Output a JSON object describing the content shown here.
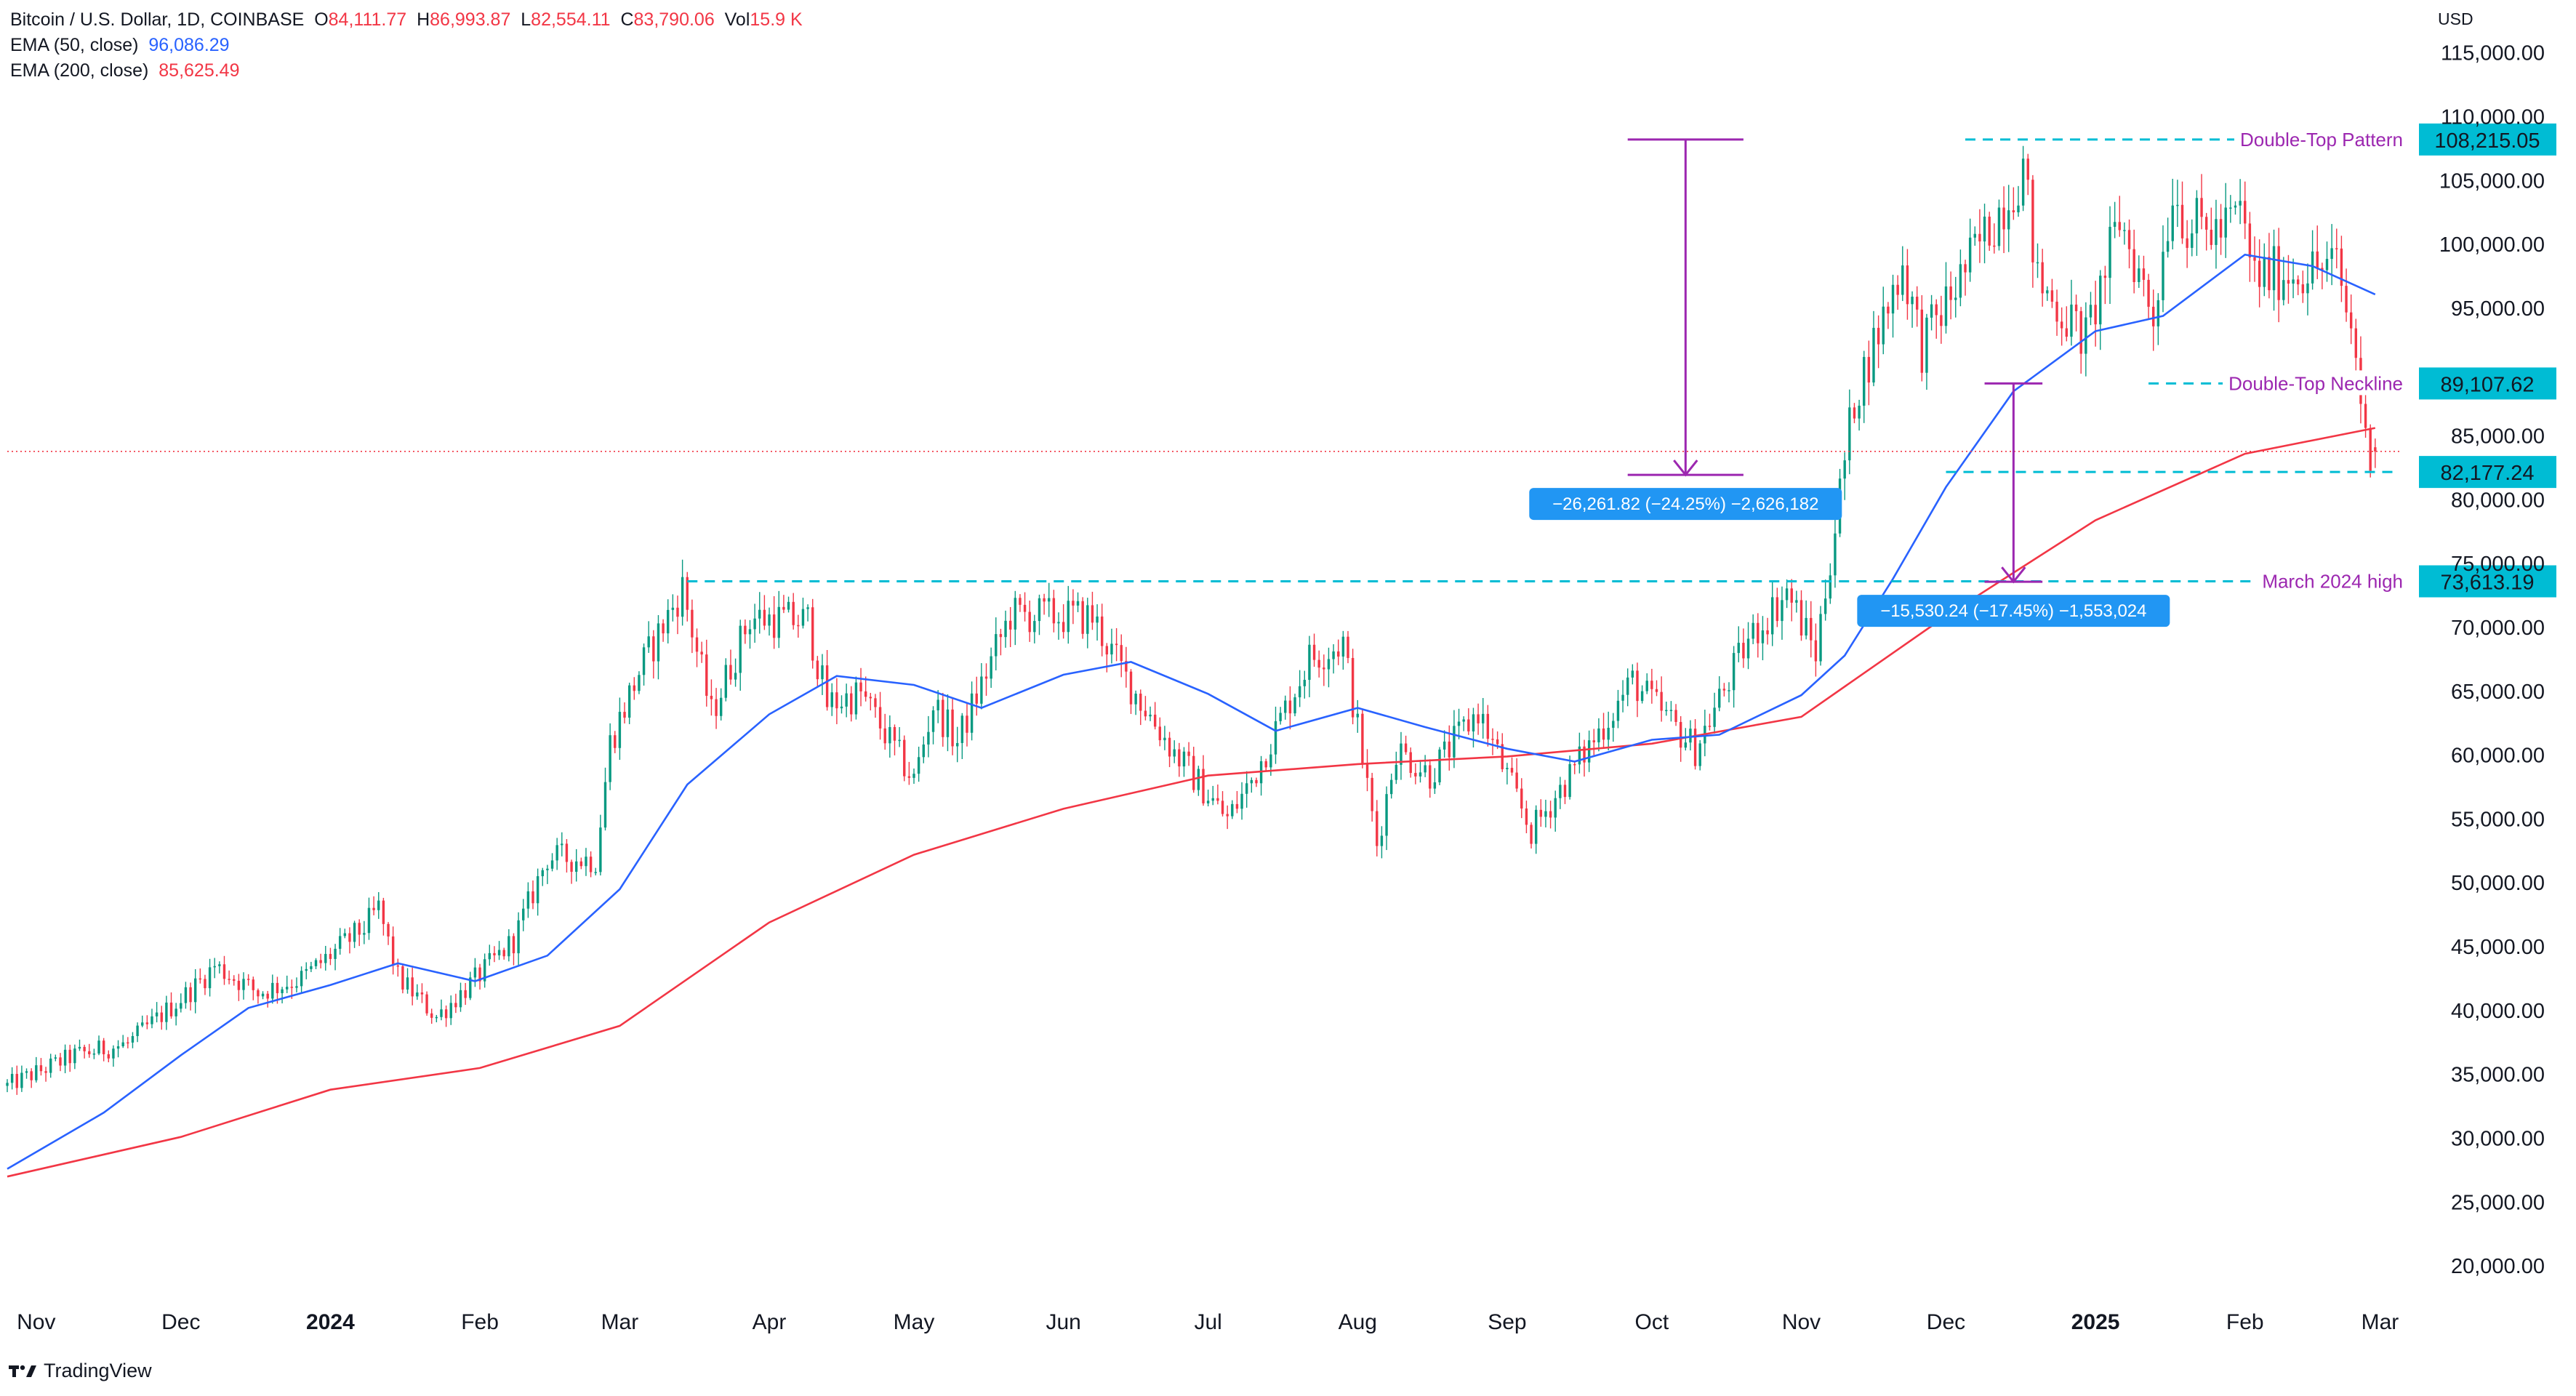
{
  "header": {
    "symbol": "Bitcoin / U.S. Dollar, 1D, COINBASE",
    "open_label": "O",
    "open": "84,111.77",
    "high_label": "H",
    "high": "86,993.87",
    "low_label": "L",
    "low": "82,554.11",
    "close_label": "C",
    "close": "83,790.06",
    "vol_label": "Vol",
    "vol": "15.9 K",
    "ema50_label": "EMA (50, close)",
    "ema50_value": "96,086.29",
    "ema200_label": "EMA (200, close)",
    "ema200_value": "85,625.49"
  },
  "currency": "USD",
  "brand": "TradingView",
  "colors": {
    "up": "#089981",
    "down": "#f23645",
    "ema50": "#2962ff",
    "ema200": "#f23645",
    "dashed": "#00bcd4",
    "measure": "#9c27b0",
    "measure_label_bg": "#2196f3",
    "annotation": "#9c27b0",
    "axis_text": "#131722",
    "last_price": "#f23645"
  },
  "chart_data": {
    "type": "candlestick",
    "y_axis": {
      "min": 17500,
      "max": 118000,
      "side": "right",
      "ticks": [
        20000,
        25000,
        30000,
        35000,
        40000,
        45000,
        50000,
        55000,
        60000,
        65000,
        70000,
        75000,
        80000,
        85000,
        90000,
        95000,
        100000,
        105000,
        110000,
        115000
      ],
      "tick_labels": [
        "20,000.00",
        "25,000.00",
        "30,000.00",
        "35,000.00",
        "40,000.00",
        "45,000.00",
        "50,000.00",
        "55,000.00",
        "60,000.00",
        "65,000.00",
        "70,000.00",
        "75,000.00",
        "80,000.00",
        "85,000.00",
        "90,000.00",
        "95,000.00",
        "100,000.00",
        "105,000.00",
        "110,000.00",
        "115,000.00"
      ]
    },
    "x_axis": {
      "start": "2023-10-26",
      "end": "2025-03-05",
      "ticks": [
        {
          "date": "2023-11-01",
          "label": "Nov",
          "bold": false
        },
        {
          "date": "2023-12-01",
          "label": "Dec",
          "bold": false
        },
        {
          "date": "2024-01-01",
          "label": "2024",
          "bold": true
        },
        {
          "date": "2024-02-01",
          "label": "Feb",
          "bold": false
        },
        {
          "date": "2024-03-01",
          "label": "Mar",
          "bold": false
        },
        {
          "date": "2024-04-01",
          "label": "Apr",
          "bold": false
        },
        {
          "date": "2024-05-01",
          "label": "May",
          "bold": false
        },
        {
          "date": "2024-06-01",
          "label": "Jun",
          "bold": false
        },
        {
          "date": "2024-07-01",
          "label": "Jul",
          "bold": false
        },
        {
          "date": "2024-08-01",
          "label": "Aug",
          "bold": false
        },
        {
          "date": "2024-09-01",
          "label": "Sep",
          "bold": false
        },
        {
          "date": "2024-10-01",
          "label": "Oct",
          "bold": false
        },
        {
          "date": "2024-11-01",
          "label": "Nov",
          "bold": false
        },
        {
          "date": "2024-12-01",
          "label": "Dec",
          "bold": false
        },
        {
          "date": "2025-01-01",
          "label": "2025",
          "bold": true
        },
        {
          "date": "2025-02-01",
          "label": "Feb",
          "bold": false
        },
        {
          "date": "2025-03-01",
          "label": "Mar",
          "bold": false
        }
      ]
    },
    "price_path": [
      [
        "2023-10-26",
        34100
      ],
      [
        "2023-11-09",
        36500
      ],
      [
        "2023-11-20",
        37400
      ],
      [
        "2023-12-04",
        41900
      ],
      [
        "2023-12-08",
        43500
      ],
      [
        "2023-12-17",
        41400
      ],
      [
        "2023-12-26",
        42500
      ],
      [
        "2024-01-08",
        46500
      ],
      [
        "2024-01-11",
        48000
      ],
      [
        "2024-01-15",
        42600
      ],
      [
        "2024-01-23",
        39500
      ],
      [
        "2024-02-01",
        42800
      ],
      [
        "2024-02-08",
        45500
      ],
      [
        "2024-02-15",
        52000
      ],
      [
        "2024-02-25",
        51800
      ],
      [
        "2024-02-28",
        61000
      ],
      [
        "2024-03-05",
        66500
      ],
      [
        "2024-03-14",
        73100
      ],
      [
        "2024-03-20",
        63200
      ],
      [
        "2024-03-28",
        70800
      ],
      [
        "2024-04-09",
        70500
      ],
      [
        "2024-04-13",
        64000
      ],
      [
        "2024-04-20",
        64800
      ],
      [
        "2024-05-01",
        58000
      ],
      [
        "2024-05-05",
        64000
      ],
      [
        "2024-05-10",
        61000
      ],
      [
        "2024-05-21",
        71000
      ],
      [
        "2024-06-07",
        70800
      ],
      [
        "2024-06-14",
        66000
      ],
      [
        "2024-06-24",
        60200
      ],
      [
        "2024-07-05",
        55000
      ],
      [
        "2024-07-10",
        58000
      ],
      [
        "2024-07-22",
        67600
      ],
      [
        "2024-07-29",
        68800
      ],
      [
        "2024-08-05",
        53000
      ],
      [
        "2024-08-09",
        60500
      ],
      [
        "2024-08-16",
        58500
      ],
      [
        "2024-08-26",
        63500
      ],
      [
        "2024-09-06",
        54000
      ],
      [
        "2024-09-15",
        59000
      ],
      [
        "2024-09-27",
        65800
      ],
      [
        "2024-10-10",
        60500
      ],
      [
        "2024-10-21",
        69000
      ],
      [
        "2024-10-29",
        72800
      ],
      [
        "2024-11-04",
        68000
      ],
      [
        "2024-11-12",
        88000
      ],
      [
        "2024-11-22",
        98500
      ],
      [
        "2024-11-26",
        92000
      ],
      [
        "2024-12-05",
        98000
      ],
      [
        "2024-12-17",
        106000
      ],
      [
        "2024-12-20",
        97000
      ],
      [
        "2024-12-30",
        92500
      ],
      [
        "2025-01-06",
        102000
      ],
      [
        "2025-01-13",
        94500
      ],
      [
        "2025-01-17",
        104500
      ],
      [
        "2025-01-20",
        101500
      ],
      [
        "2025-01-27",
        101000
      ],
      [
        "2025-01-31",
        102500
      ],
      [
        "2025-02-03",
        97500
      ],
      [
        "2025-02-20",
        98300
      ],
      [
        "2025-02-24",
        91500
      ],
      [
        "2025-02-26",
        84500
      ],
      [
        "2025-02-28",
        83790
      ]
    ],
    "ema50_path": [
      [
        "2023-10-26",
        27600
      ],
      [
        "2023-11-15",
        32000
      ],
      [
        "2023-12-01",
        36500
      ],
      [
        "2023-12-15",
        40200
      ],
      [
        "2024-01-01",
        42000
      ],
      [
        "2024-01-15",
        43700
      ],
      [
        "2024-01-31",
        42300
      ],
      [
        "2024-02-15",
        44300
      ],
      [
        "2024-03-01",
        49500
      ],
      [
        "2024-03-15",
        57700
      ],
      [
        "2024-04-01",
        63200
      ],
      [
        "2024-04-15",
        66200
      ],
      [
        "2024-05-01",
        65500
      ],
      [
        "2024-05-15",
        63700
      ],
      [
        "2024-06-01",
        66300
      ],
      [
        "2024-06-15",
        67300
      ],
      [
        "2024-07-01",
        64800
      ],
      [
        "2024-07-15",
        61900
      ],
      [
        "2024-08-01",
        63700
      ],
      [
        "2024-08-15",
        62200
      ],
      [
        "2024-09-01",
        60500
      ],
      [
        "2024-09-15",
        59500
      ],
      [
        "2024-10-01",
        61200
      ],
      [
        "2024-10-15",
        61600
      ],
      [
        "2024-11-01",
        64700
      ],
      [
        "2024-11-10",
        67800
      ],
      [
        "2024-11-20",
        73800
      ],
      [
        "2024-12-01",
        81000
      ],
      [
        "2024-12-15",
        88500
      ],
      [
        "2025-01-01",
        93200
      ],
      [
        "2025-01-15",
        94400
      ],
      [
        "2025-02-01",
        99200
      ],
      [
        "2025-02-15",
        98300
      ],
      [
        "2025-02-28",
        96086
      ]
    ],
    "ema200_path": [
      [
        "2023-10-26",
        27000
      ],
      [
        "2023-12-01",
        30100
      ],
      [
        "2024-01-01",
        33800
      ],
      [
        "2024-02-01",
        35500
      ],
      [
        "2024-03-01",
        38800
      ],
      [
        "2024-04-01",
        46900
      ],
      [
        "2024-05-01",
        52200
      ],
      [
        "2024-06-01",
        55800
      ],
      [
        "2024-07-01",
        58400
      ],
      [
        "2024-08-01",
        59300
      ],
      [
        "2024-09-01",
        59900
      ],
      [
        "2024-10-01",
        60900
      ],
      [
        "2024-11-01",
        63000
      ],
      [
        "2024-12-01",
        70900
      ],
      [
        "2025-01-01",
        78400
      ],
      [
        "2025-02-01",
        83600
      ],
      [
        "2025-02-28",
        85625
      ]
    ],
    "last_price": 83790,
    "horizontal_levels": [
      {
        "start": "2024-03-15",
        "end": "2025-02-28",
        "value": 73613.19,
        "label": "73,613.19",
        "annotation": "March 2024 high"
      },
      {
        "start": "2024-12-05",
        "end": "2025-02-28",
        "value": 108215.05,
        "label": "108,215.05",
        "annotation": "Double-Top Pattern"
      },
      {
        "start": "2025-01-12",
        "end": "2025-02-28",
        "value": 89107.62,
        "label": "89,107.62",
        "annotation": "Double-Top Neckline"
      },
      {
        "start": "2024-12-01",
        "end": "2025-02-28",
        "value": 82177.24,
        "label": "82,177.24",
        "annotation": ""
      }
    ],
    "measurements": [
      {
        "date": "2024-10-08",
        "from": 108215,
        "to": 81953,
        "cap_halfwidth_days": 12,
        "label": "−26,261.82 (−24.25%) −2,626,182"
      },
      {
        "date": "2024-12-15",
        "from": 89108,
        "to": 73578,
        "cap_halfwidth_days": 6,
        "label": "−15,530.24 (−17.45%) −1,553,024"
      }
    ]
  }
}
